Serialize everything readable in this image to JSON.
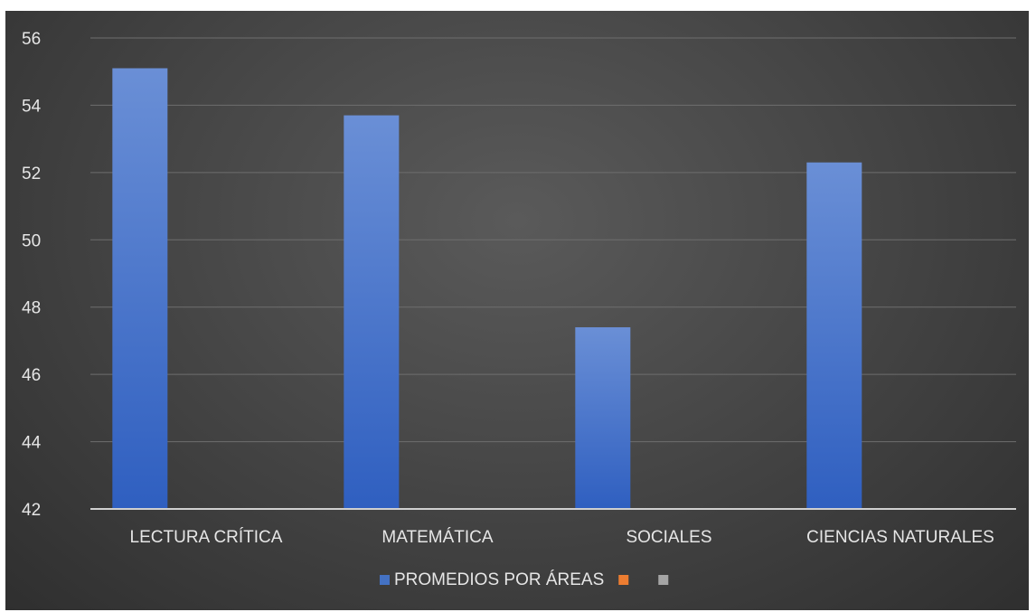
{
  "chart_data": {
    "type": "bar",
    "title": "",
    "xlabel": "",
    "ylabel": "",
    "categories": [
      "LECTURA CRÍTICA",
      "MATEMÁTICA",
      "SOCIALES",
      "CIENCIAS NATURALES"
    ],
    "series": [
      {
        "name": "PROMEDIOS POR ÁREAS",
        "values": [
          55.1,
          53.7,
          47.4,
          52.3
        ],
        "color": "#4472c4"
      },
      {
        "name": "",
        "values": [
          null,
          null,
          null,
          null
        ],
        "color": "#ed7d31"
      },
      {
        "name": "",
        "values": [
          null,
          null,
          null,
          null
        ],
        "color": "#a5a5a5"
      }
    ],
    "ylim": [
      42,
      56
    ],
    "yticks": [
      42,
      44,
      46,
      48,
      50,
      52,
      54,
      56
    ],
    "grid": true,
    "legend": "bottom-center"
  }
}
